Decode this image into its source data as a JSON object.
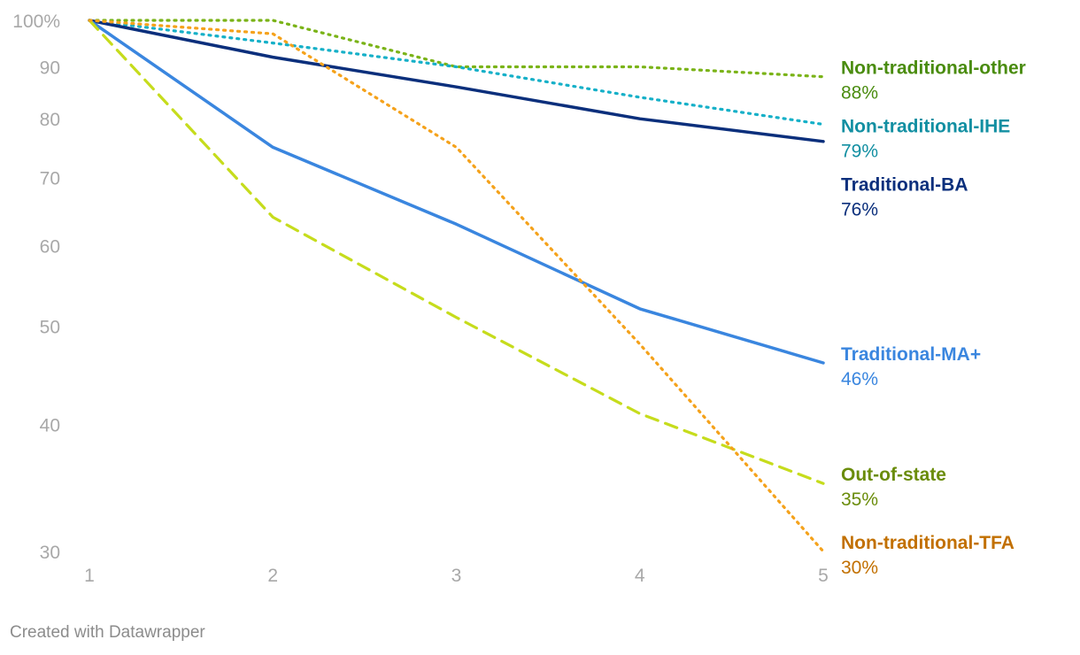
{
  "chart_data": {
    "type": "line",
    "x": [
      1,
      2,
      3,
      4,
      5
    ],
    "x_ticks": [
      "1",
      "2",
      "3",
      "4",
      "5"
    ],
    "y_scale": "log",
    "ylim": [
      30,
      100
    ],
    "y_ticks": [
      {
        "value": 100,
        "label": "100%"
      },
      {
        "value": 90,
        "label": "90"
      },
      {
        "value": 80,
        "label": "80"
      },
      {
        "value": 70,
        "label": "70"
      },
      {
        "value": 60,
        "label": "60"
      },
      {
        "value": 50,
        "label": "50"
      },
      {
        "value": 40,
        "label": "40"
      },
      {
        "value": 30,
        "label": "30"
      }
    ],
    "grid": false,
    "legend": "direct labels at line ends (right)",
    "series": [
      {
        "name": "Non-traditional-other",
        "end_label": "88%",
        "values": [
          100,
          100,
          90,
          90,
          88
        ],
        "color": "#7ab317",
        "label_color": "#4a8c0f",
        "style": "dotted"
      },
      {
        "name": "Non-traditional-IHE",
        "end_label": "79%",
        "values": [
          100,
          95,
          90,
          84,
          79
        ],
        "color": "#15b0c8",
        "label_color": "#128fa2",
        "style": "dotted"
      },
      {
        "name": "Traditional-BA",
        "end_label": "76%",
        "values": [
          100,
          92,
          86,
          80,
          76
        ],
        "color": "#0b2f7c",
        "label_color": "#0b2f7c",
        "style": "solid"
      },
      {
        "name": "Traditional-MA+",
        "end_label": "46%",
        "values": [
          100,
          75,
          63,
          52,
          46
        ],
        "color": "#3a86df",
        "label_color": "#3a86df",
        "style": "solid"
      },
      {
        "name": "Out-of-state",
        "end_label": "35%",
        "values": [
          100,
          64,
          51,
          41,
          35
        ],
        "color": "#c6dc1c",
        "label_color": "#6a8c0a",
        "style": "dashed"
      },
      {
        "name": "Non-traditional-TFA",
        "end_label": "30%",
        "values": [
          100,
          97,
          75,
          48,
          30
        ],
        "color": "#f5a21b",
        "label_color": "#c27000",
        "style": "dotted"
      }
    ]
  },
  "footer": {
    "credit": "Created with Datawrapper"
  }
}
